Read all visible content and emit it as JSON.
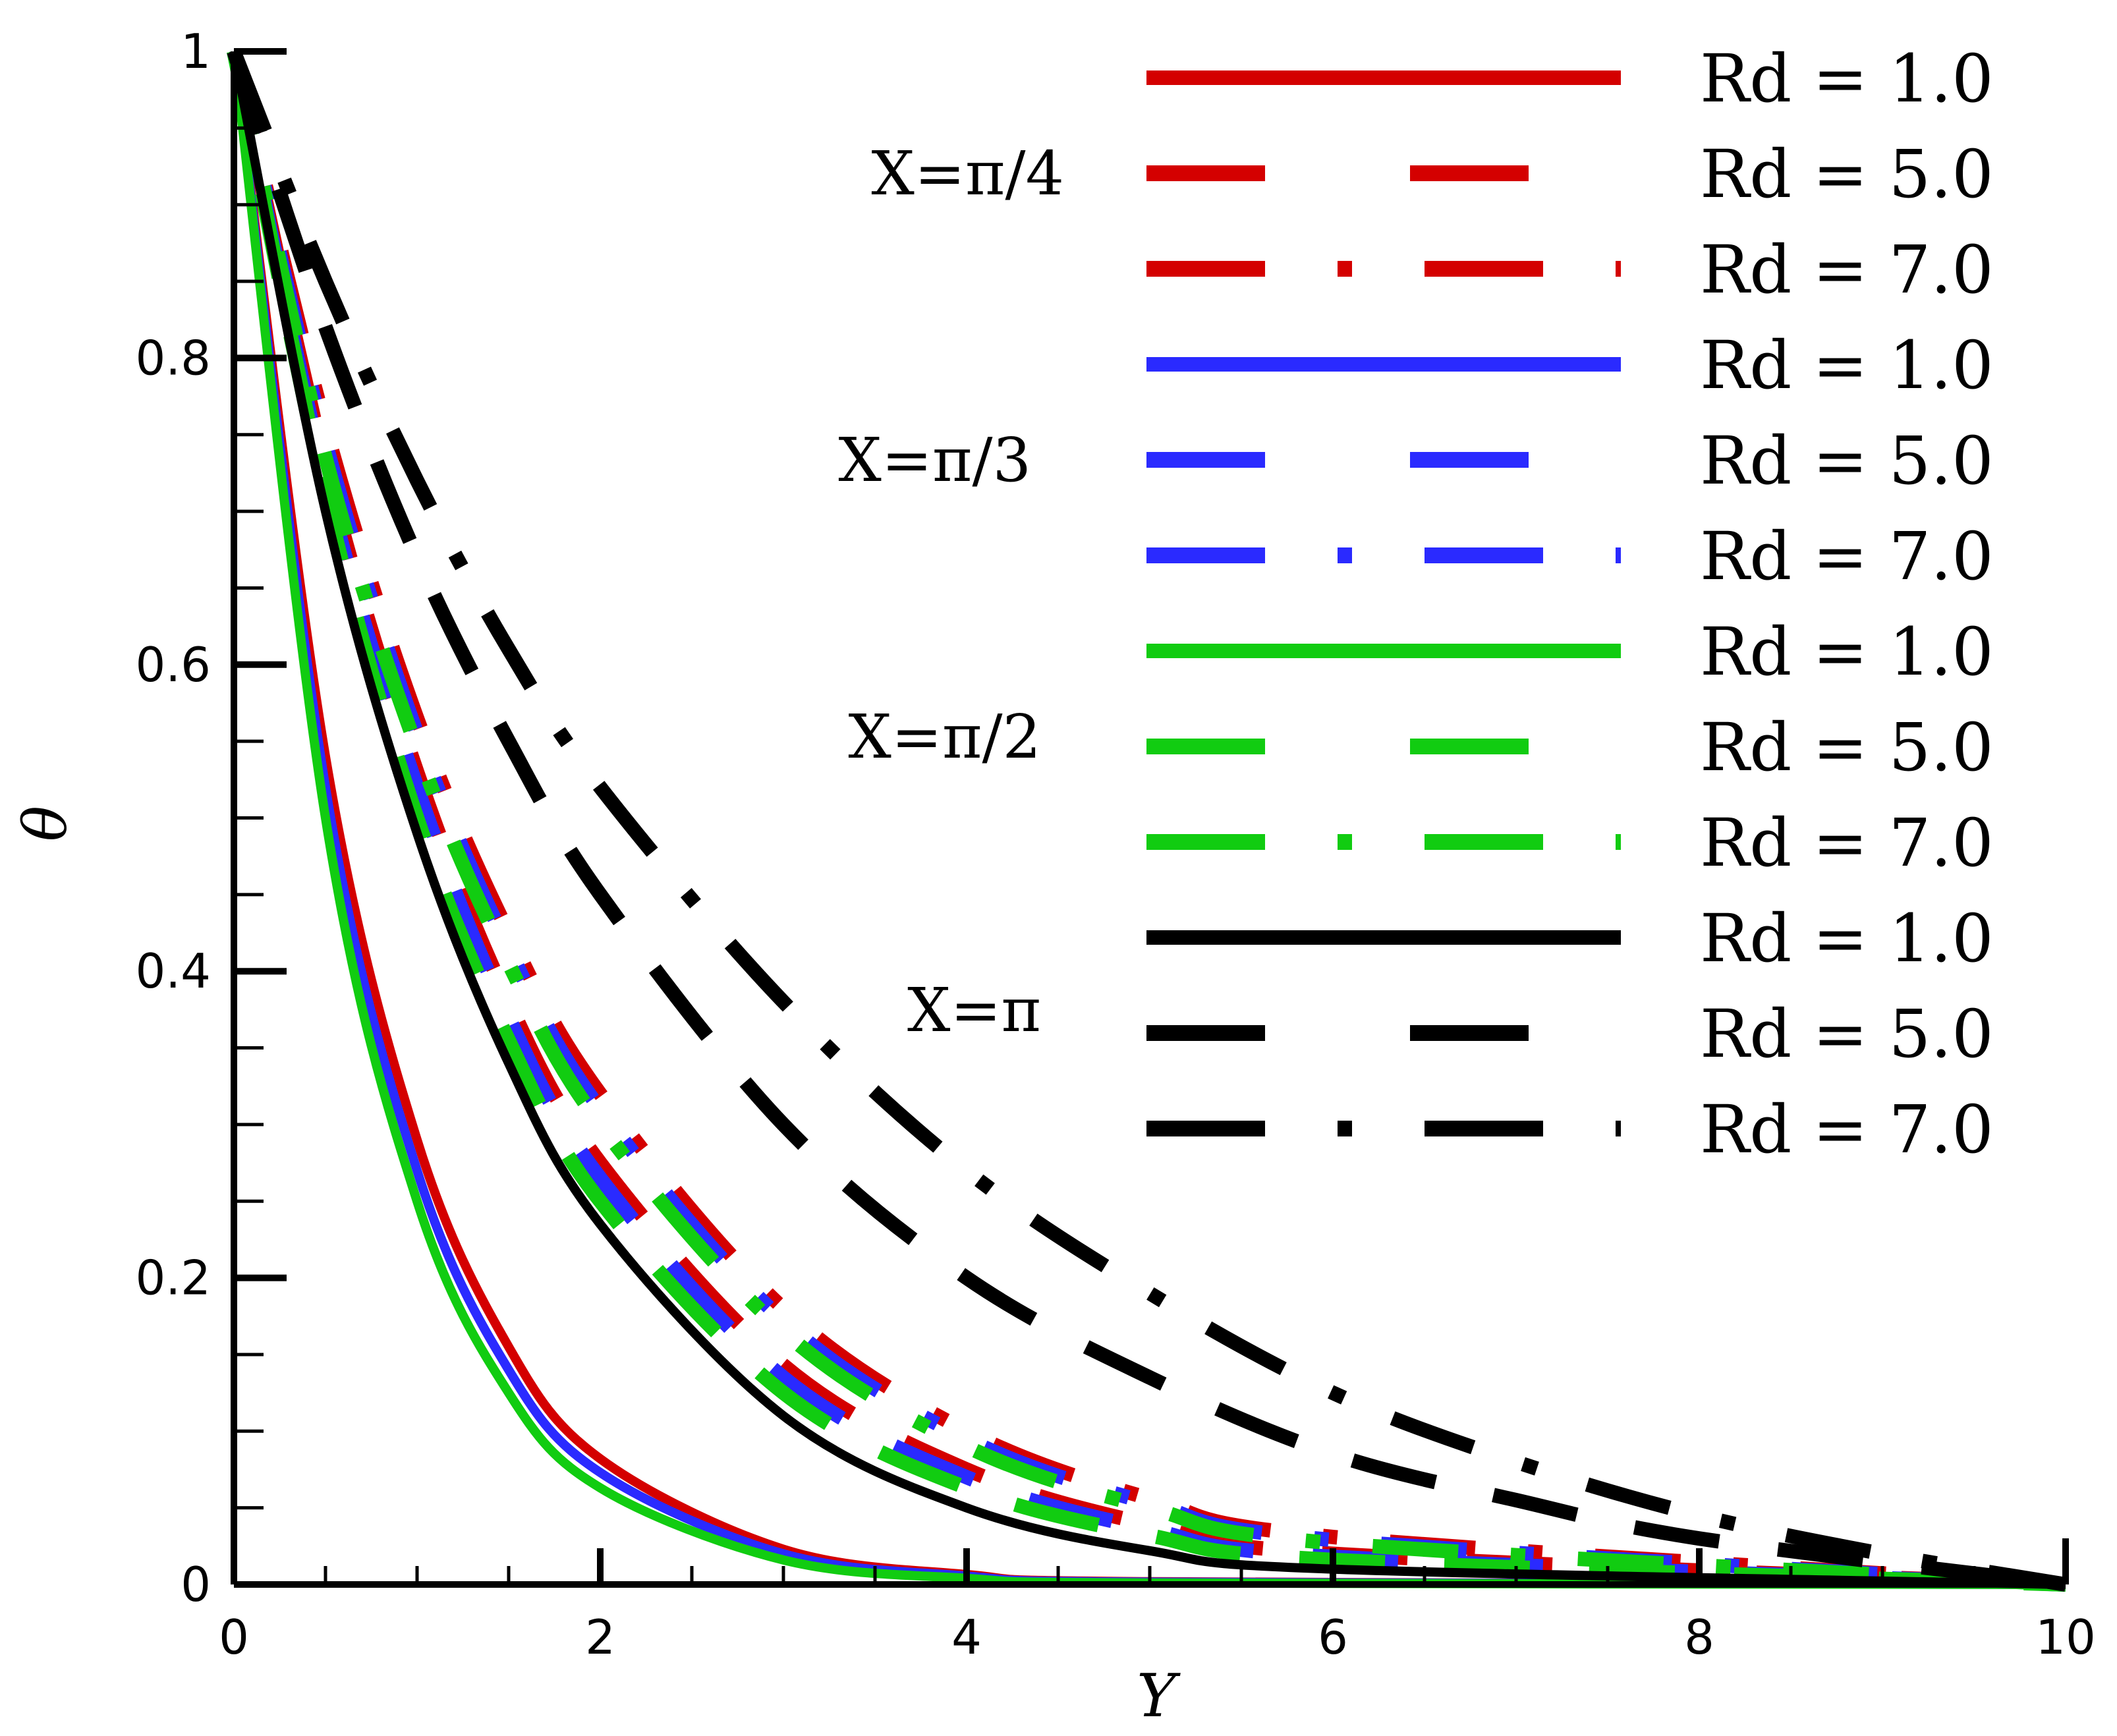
{
  "chart_data": {
    "type": "line",
    "xlabel": "Y",
    "ylabel": "θ",
    "xlim": [
      0,
      10
    ],
    "ylim": [
      0,
      1
    ],
    "x_ticks": [
      "0",
      "2",
      "4",
      "6",
      "8",
      "10"
    ],
    "y_ticks": [
      "0",
      "0.2",
      "0.4",
      "0.6",
      "0.8",
      "1"
    ],
    "grid": false,
    "legend_position": "top-right",
    "colors": {
      "red": "#d40000",
      "blue": "#2a2aff",
      "green": "#11cc11",
      "black": "#000000"
    },
    "groups": [
      {
        "label": "X=π/4",
        "color": "red"
      },
      {
        "label": "X=π/3",
        "color": "blue"
      },
      {
        "label": "X=π/2",
        "color": "green"
      },
      {
        "label": "X=π",
        "color": "black"
      }
    ],
    "series": [
      {
        "name": "Rd = 1.0",
        "group": 0,
        "style": "solid",
        "x": [
          0,
          0.5,
          1,
          1.5,
          2,
          3,
          4,
          5,
          10
        ],
        "y": [
          1,
          0.54,
          0.29,
          0.155,
          0.082,
          0.023,
          0.0065,
          0.0018,
          0
        ]
      },
      {
        "name": "Rd = 5.0",
        "group": 0,
        "style": "dash",
        "x": [
          0,
          0.5,
          1,
          1.5,
          2,
          3,
          4,
          5,
          6,
          10
        ],
        "y": [
          1,
          0.73,
          0.53,
          0.38,
          0.275,
          0.143,
          0.075,
          0.039,
          0.02,
          0
        ]
      },
      {
        "name": "Rd = 7.0",
        "group": 0,
        "style": "dashdot",
        "x": [
          0,
          0.5,
          1,
          1.5,
          2,
          3,
          4,
          5,
          6,
          10
        ],
        "y": [
          1,
          0.755,
          0.565,
          0.425,
          0.32,
          0.18,
          0.1,
          0.056,
          0.031,
          0
        ]
      },
      {
        "name": "Rd = 1.0",
        "group": 1,
        "style": "solid",
        "x": [
          0,
          0.5,
          1,
          1.5,
          2,
          3,
          4,
          5,
          10
        ],
        "y": [
          1,
          0.52,
          0.27,
          0.14,
          0.073,
          0.02,
          0.0055,
          0.0015,
          0
        ]
      },
      {
        "name": "Rd = 5.0",
        "group": 1,
        "style": "dash",
        "x": [
          0,
          0.5,
          1,
          1.5,
          2,
          3,
          4,
          5,
          6,
          10
        ],
        "y": [
          1,
          0.72,
          0.52,
          0.37,
          0.265,
          0.135,
          0.07,
          0.036,
          0.018,
          0
        ]
      },
      {
        "name": "Rd = 7.0",
        "group": 1,
        "style": "dashdot",
        "x": [
          0,
          0.5,
          1,
          1.5,
          2,
          3,
          4,
          5,
          6,
          10
        ],
        "y": [
          1,
          0.745,
          0.555,
          0.415,
          0.31,
          0.172,
          0.095,
          0.053,
          0.029,
          0
        ]
      },
      {
        "name": "Rd = 1.0",
        "group": 2,
        "style": "solid",
        "x": [
          0,
          0.5,
          1,
          1.5,
          2,
          3,
          4,
          5,
          10
        ],
        "y": [
          1,
          0.5,
          0.25,
          0.125,
          0.063,
          0.016,
          0.004,
          0.001,
          0
        ]
      },
      {
        "name": "Rd = 5.0",
        "group": 2,
        "style": "dash",
        "x": [
          0,
          0.5,
          1,
          1.5,
          2,
          3,
          4,
          5,
          6,
          10
        ],
        "y": [
          1,
          0.71,
          0.5,
          0.355,
          0.25,
          0.125,
          0.063,
          0.032,
          0.016,
          0
        ]
      },
      {
        "name": "Rd = 7.0",
        "group": 2,
        "style": "dashdot",
        "x": [
          0,
          0.5,
          1,
          1.5,
          2,
          3,
          4,
          5,
          6,
          10
        ],
        "y": [
          1,
          0.735,
          0.545,
          0.405,
          0.3,
          0.165,
          0.09,
          0.05,
          0.027,
          0
        ]
      },
      {
        "name": "Rd = 1.0",
        "group": 3,
        "style": "solid",
        "x": [
          0,
          0.5,
          1,
          1.5,
          2,
          3,
          4,
          5,
          6,
          10
        ],
        "y": [
          1,
          0.7,
          0.49,
          0.34,
          0.235,
          0.11,
          0.05,
          0.022,
          0.01,
          0
        ]
      },
      {
        "name": "Rd = 5.0",
        "group": 3,
        "style": "dash",
        "x": [
          0,
          0.5,
          1,
          1.5,
          2,
          3,
          4,
          5,
          6,
          7,
          8,
          10
        ],
        "y": [
          1,
          0.82,
          0.67,
          0.55,
          0.45,
          0.3,
          0.2,
          0.135,
          0.085,
          0.055,
          0.03,
          0
        ]
      },
      {
        "name": "Rd = 7.0",
        "group": 3,
        "style": "dashdot",
        "x": [
          0,
          0.5,
          1,
          1.5,
          2,
          3,
          4,
          5,
          6,
          7,
          8,
          9,
          10
        ],
        "y": [
          1,
          0.85,
          0.72,
          0.61,
          0.52,
          0.38,
          0.27,
          0.19,
          0.125,
          0.08,
          0.045,
          0.02,
          0
        ]
      }
    ]
  }
}
